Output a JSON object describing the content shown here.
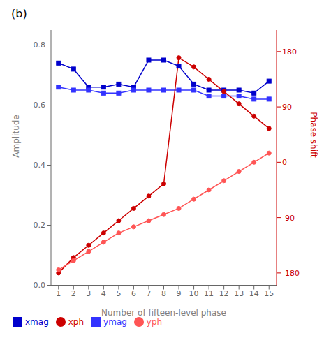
{
  "chart_data": {
    "type": "line",
    "title": "(b)",
    "x_label": "Number of fifteen-level phase",
    "y_label": "Amplitude",
    "y2_label": "Phase shift",
    "x": [
      1,
      2,
      3,
      4,
      5,
      6,
      7,
      8,
      9,
      10,
      11,
      12,
      13,
      14,
      15
    ],
    "xlim": [
      0.5,
      15.5
    ],
    "xticks": [
      1,
      2,
      3,
      4,
      5,
      6,
      7,
      8,
      9,
      10,
      11,
      12,
      13,
      14,
      15
    ],
    "ylim": [
      0.0,
      0.85
    ],
    "yticks": [
      {
        "value": 0,
        "label": "0.0"
      },
      0.2,
      0.4,
      0.6,
      0.8
    ],
    "y2lim": [
      -200,
      215
    ],
    "y2ticks": [
      -180,
      -90,
      0,
      90,
      180
    ],
    "grid": false,
    "legend": "lower left",
    "series": [
      {
        "name": "xmag",
        "color": "#0000cc",
        "marker": "square",
        "values": [
          0.74,
          0.72,
          0.66,
          0.66,
          0.67,
          0.66,
          0.75,
          0.75,
          0.73,
          0.67,
          0.65,
          0.65,
          0.65,
          0.64,
          0.68
        ]
      },
      {
        "name": "ymag",
        "color": "#3333ff",
        "marker": "square",
        "values": [
          0.66,
          0.65,
          0.65,
          0.64,
          0.64,
          0.65,
          0.65,
          0.65,
          0.65,
          0.65,
          0.63,
          0.63,
          0.63,
          0.62,
          0.62
        ]
      },
      {
        "name": "xph",
        "color": "#cc0000",
        "marker": "circle",
        "axis": "y2",
        "values": [
          -180,
          -155,
          -135,
          -115,
          -95,
          -75,
          -55,
          -35,
          170,
          155,
          135,
          115,
          95,
          75,
          55
        ]
      },
      {
        "name": "yph",
        "color": "#ff5555",
        "marker": "circle",
        "axis": "y2",
        "values": [
          -175,
          -160,
          -145,
          -130,
          -115,
          -105,
          -95,
          -85,
          -75,
          -60,
          -45,
          -30,
          -15,
          0,
          15
        ]
      }
    ]
  }
}
